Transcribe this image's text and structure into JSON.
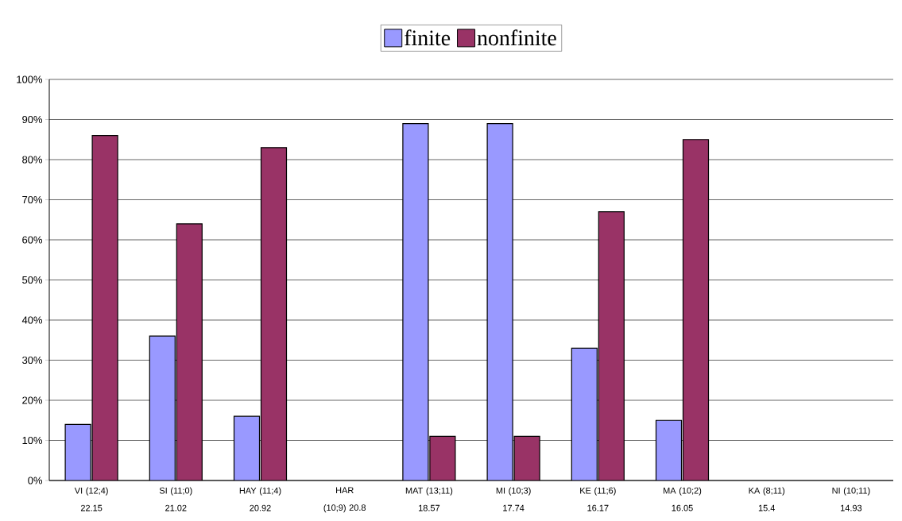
{
  "chart_data": {
    "type": "bar",
    "categories": [
      "VI (12;4) 22.15",
      "SI (11;0) 21.02",
      "HAY (11;4) 20.92",
      "HAR (10;9) 20.8",
      "MAT (13;11) 18.57",
      "MI (10;3) 17.74",
      "KE (11;6) 16.17",
      "MA (10;2) 16.05",
      "KA (8;11) 15.4",
      "NI (10;11) 14.93"
    ],
    "series": [
      {
        "name": "finite",
        "color": "#9999ff",
        "values": [
          14,
          36,
          16,
          null,
          89,
          89,
          33,
          15,
          null,
          null
        ]
      },
      {
        "name": "nonfinite",
        "color": "#993366",
        "values": [
          86,
          64,
          83,
          null,
          11,
          11,
          67,
          85,
          null,
          null
        ]
      }
    ],
    "ylim": [
      0,
      100
    ],
    "yticks": [
      {
        "value": 0,
        "label": "0%"
      },
      {
        "value": 10,
        "label": "10%"
      },
      {
        "value": 20,
        "label": "20%"
      },
      {
        "value": 30,
        "label": "30%"
      },
      {
        "value": 40,
        "label": "40%"
      },
      {
        "value": 50,
        "label": "50%"
      },
      {
        "value": 60,
        "label": "60%"
      },
      {
        "value": 70,
        "label": "70%"
      },
      {
        "value": 80,
        "label": "80%"
      },
      {
        "value": 90,
        "label": "90%"
      },
      {
        "value": 100,
        "label": "100%"
      }
    ],
    "grid": "y",
    "legend": "top"
  }
}
